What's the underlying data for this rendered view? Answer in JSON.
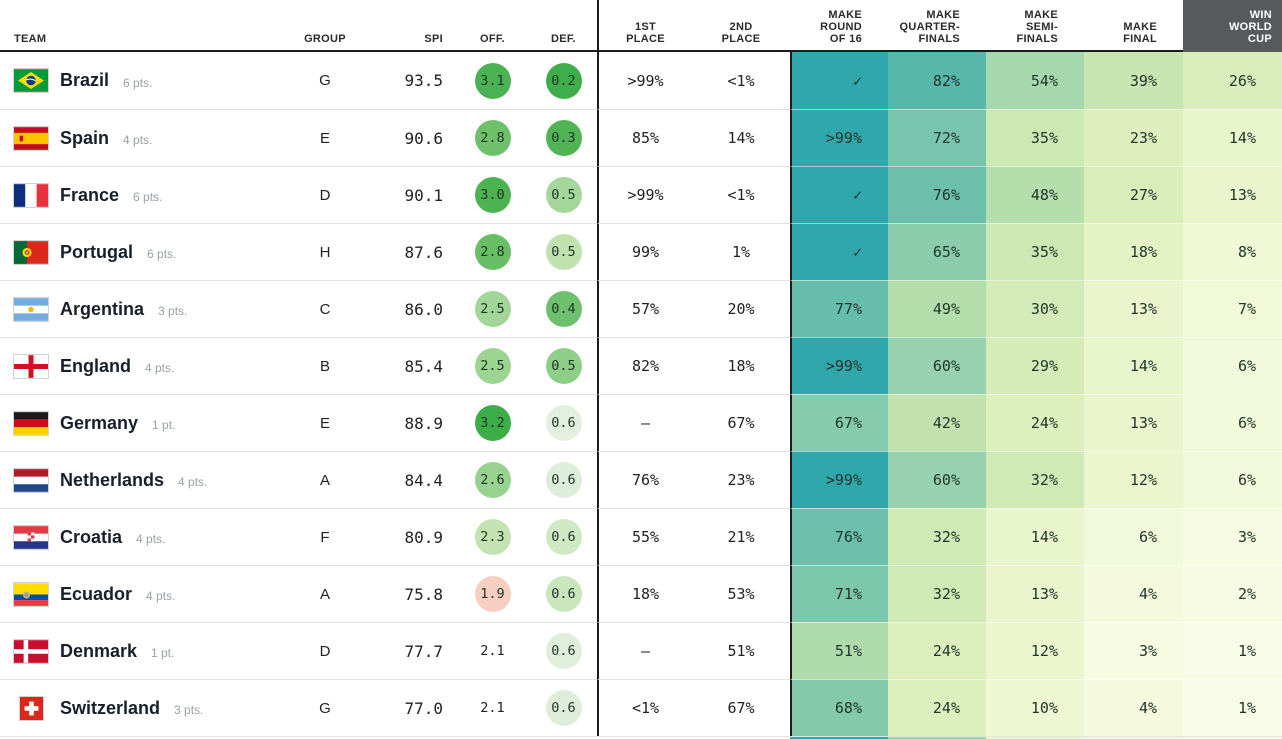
{
  "headers": {
    "team": "TEAM",
    "group": "GROUP",
    "spi": "SPI",
    "off": "OFF.",
    "def": "DEF.",
    "first_place": [
      "1ST",
      "PLACE"
    ],
    "second_place": [
      "2ND",
      "PLACE"
    ],
    "make_round_of_16": [
      "MAKE",
      "ROUND",
      "OF 16"
    ],
    "make_quarterfinals": [
      "MAKE",
      "QUARTER-",
      "FINALS"
    ],
    "make_semifinals": [
      "MAKE",
      "SEMI-",
      "FINALS"
    ],
    "make_final": [
      "MAKE",
      "FINAL"
    ],
    "win_world_cup": [
      "WIN",
      "WORLD",
      "CUP"
    ]
  },
  "colors": {
    "win_header_bg": "#58595b",
    "cell_scale_high": "#2fa7ab",
    "cell_scale_low": "#f9fce8",
    "divider": "#1c1c1c"
  },
  "teams": [
    {
      "name": "Brazil",
      "points": "6 pts.",
      "flag_icon": "brazil-flag-icon",
      "group": "G",
      "spi": "93.5",
      "off": "3.1",
      "off_color": "#4bb253",
      "def": "0.2",
      "def_color": "#3fae4a",
      "p1": ">99%",
      "p2": "<1%",
      "r16": "✓",
      "r16_pct": 100,
      "qf": "82%",
      "qf_pct": 82,
      "sf": "54%",
      "sf_pct": 54,
      "final": "39%",
      "final_pct": 39,
      "win": "26%",
      "win_pct": 26
    },
    {
      "name": "Spain",
      "points": "4 pts.",
      "flag_icon": "spain-flag-icon",
      "group": "E",
      "spi": "90.6",
      "off": "2.8",
      "off_color": "#6ec06b",
      "def": "0.3",
      "def_color": "#50b455",
      "p1": "85%",
      "p2": "14%",
      "r16": ">99%",
      "r16_pct": 99.5,
      "qf": "72%",
      "qf_pct": 72,
      "sf": "35%",
      "sf_pct": 35,
      "final": "23%",
      "final_pct": 23,
      "win": "14%",
      "win_pct": 14
    },
    {
      "name": "France",
      "points": "6 pts.",
      "flag_icon": "france-flag-icon",
      "group": "D",
      "spi": "90.1",
      "off": "3.0",
      "off_color": "#4db252",
      "def": "0.5",
      "def_color": "#a4d799",
      "p1": ">99%",
      "p2": "<1%",
      "r16": "✓",
      "r16_pct": 100,
      "qf": "76%",
      "qf_pct": 76,
      "sf": "48%",
      "sf_pct": 48,
      "final": "27%",
      "final_pct": 27,
      "win": "13%",
      "win_pct": 13
    },
    {
      "name": "Portugal",
      "points": "6 pts.",
      "flag_icon": "portugal-flag-icon",
      "group": "H",
      "spi": "87.6",
      "off": "2.8",
      "off_color": "#68be65",
      "def": "0.5",
      "def_color": "#bfe2ae",
      "p1": "99%",
      "p2": "1%",
      "r16": "✓",
      "r16_pct": 100,
      "qf": "65%",
      "qf_pct": 65,
      "sf": "35%",
      "sf_pct": 35,
      "final": "18%",
      "final_pct": 18,
      "win": "8%",
      "win_pct": 8
    },
    {
      "name": "Argentina",
      "points": "3 pts.",
      "flag_icon": "argentina-flag-icon",
      "group": "C",
      "spi": "86.0",
      "off": "2.5",
      "off_color": "#a2d698",
      "def": "0.4",
      "def_color": "#6fc06c",
      "p1": "57%",
      "p2": "20%",
      "r16": "77%",
      "r16_pct": 77,
      "qf": "49%",
      "qf_pct": 49,
      "sf": "30%",
      "sf_pct": 30,
      "final": "13%",
      "final_pct": 13,
      "win": "7%",
      "win_pct": 7
    },
    {
      "name": "England",
      "points": "4 pts.",
      "flag_icon": "england-flag-icon",
      "group": "B",
      "spi": "85.4",
      "off": "2.5",
      "off_color": "#9cd492",
      "def": "0.5",
      "def_color": "#8fce87",
      "p1": "82%",
      "p2": "18%",
      "r16": ">99%",
      "r16_pct": 99.5,
      "qf": "60%",
      "qf_pct": 60,
      "sf": "29%",
      "sf_pct": 29,
      "final": "14%",
      "final_pct": 14,
      "win": "6%",
      "win_pct": 6
    },
    {
      "name": "Germany",
      "points": "1 pt.",
      "flag_icon": "germany-flag-icon",
      "group": "E",
      "spi": "88.9",
      "off": "3.2",
      "off_color": "#3dad48",
      "def": "0.6",
      "def_color": "#e3f0df",
      "p1": "–",
      "p2": "67%",
      "r16": "67%",
      "r16_pct": 67,
      "qf": "42%",
      "qf_pct": 42,
      "sf": "24%",
      "sf_pct": 24,
      "final": "13%",
      "final_pct": 13,
      "win": "6%",
      "win_pct": 6
    },
    {
      "name": "Netherlands",
      "points": "4 pts.",
      "flag_icon": "netherlands-flag-icon",
      "group": "A",
      "spi": "84.4",
      "off": "2.6",
      "off_color": "#97d28e",
      "def": "0.6",
      "def_color": "#ddeeda",
      "p1": "76%",
      "p2": "23%",
      "r16": ">99%",
      "r16_pct": 99.5,
      "qf": "60%",
      "qf_pct": 60,
      "sf": "32%",
      "sf_pct": 32,
      "final": "12%",
      "final_pct": 12,
      "win": "6%",
      "win_pct": 6
    },
    {
      "name": "Croatia",
      "points": "4 pts.",
      "flag_icon": "croatia-flag-icon",
      "group": "F",
      "spi": "80.9",
      "off": "2.3",
      "off_color": "#c3e4b2",
      "def": "0.6",
      "def_color": "#cfe9c5",
      "p1": "55%",
      "p2": "21%",
      "r16": "76%",
      "r16_pct": 76,
      "qf": "32%",
      "qf_pct": 32,
      "sf": "14%",
      "sf_pct": 14,
      "final": "6%",
      "final_pct": 6,
      "win": "3%",
      "win_pct": 3
    },
    {
      "name": "Ecuador",
      "points": "4 pts.",
      "flag_icon": "ecuador-flag-icon",
      "group": "A",
      "spi": "75.8",
      "off": "1.9",
      "off_color": "#f6cfc1",
      "def": "0.6",
      "def_color": "#c8e7bd",
      "p1": "18%",
      "p2": "53%",
      "r16": "71%",
      "r16_pct": 71,
      "qf": "32%",
      "qf_pct": 32,
      "sf": "13%",
      "sf_pct": 13,
      "final": "4%",
      "final_pct": 4,
      "win": "2%",
      "win_pct": 2
    },
    {
      "name": "Denmark",
      "points": "1 pt.",
      "flag_icon": "denmark-flag-icon",
      "group": "D",
      "spi": "77.7",
      "off": "2.1",
      "off_color": null,
      "def": "0.6",
      "def_color": "#e0efdc",
      "p1": "–",
      "p2": "51%",
      "r16": "51%",
      "r16_pct": 51,
      "qf": "24%",
      "qf_pct": 24,
      "sf": "12%",
      "sf_pct": 12,
      "final": "3%",
      "final_pct": 3,
      "win": "1%",
      "win_pct": 1
    },
    {
      "name": "Switzerland",
      "points": "3 pts.",
      "flag_icon": "switzerland-flag-icon",
      "group": "G",
      "spi": "77.0",
      "off": "2.1",
      "off_color": null,
      "def": "0.6",
      "def_color": "#dfeeda",
      "p1": "<1%",
      "p2": "67%",
      "r16": "68%",
      "r16_pct": 68,
      "qf": "24%",
      "qf_pct": 24,
      "sf": "10%",
      "sf_pct": 10,
      "final": "4%",
      "final_pct": 4,
      "win": "1%",
      "win_pct": 1
    }
  ]
}
